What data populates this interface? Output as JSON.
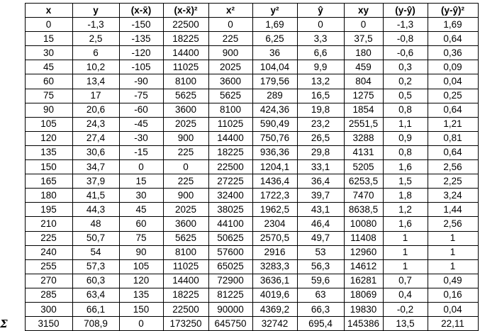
{
  "headers": [
    "x",
    "y",
    "(x-x̄)",
    "(x-x̄)²",
    "x²",
    "y²",
    "ŷ",
    "xy",
    "(y-ŷ)",
    "(y-ŷ)²"
  ],
  "rows": [
    [
      "0",
      "-1,3",
      "-150",
      "22500",
      "0",
      "1,69",
      "0",
      "0",
      "-1,3",
      "1,69"
    ],
    [
      "15",
      "2,5",
      "-135",
      "18225",
      "225",
      "6,25",
      "3,3",
      "37,5",
      "-0,8",
      "0,64"
    ],
    [
      "30",
      "6",
      "-120",
      "14400",
      "900",
      "36",
      "6,6",
      "180",
      "-0,6",
      "0,36"
    ],
    [
      "45",
      "10,2",
      "-105",
      "11025",
      "2025",
      "104,04",
      "9,9",
      "459",
      "0,3",
      "0,09"
    ],
    [
      "60",
      "13,4",
      "-90",
      "8100",
      "3600",
      "179,56",
      "13,2",
      "804",
      "0,2",
      "0,04"
    ],
    [
      "75",
      "17",
      "-75",
      "5625",
      "5625",
      "289",
      "16,5",
      "1275",
      "0,5",
      "0,25"
    ],
    [
      "90",
      "20,6",
      "-60",
      "3600",
      "8100",
      "424,36",
      "19,8",
      "1854",
      "0,8",
      "0,64"
    ],
    [
      "105",
      "24,3",
      "-45",
      "2025",
      "11025",
      "590,49",
      "23,2",
      "2551,5",
      "1,1",
      "1,21"
    ],
    [
      "120",
      "27,4",
      "-30",
      "900",
      "14400",
      "750,76",
      "26,5",
      "3288",
      "0,9",
      "0,81"
    ],
    [
      "135",
      "30,6",
      "-15",
      "225",
      "18225",
      "936,36",
      "29,8",
      "4131",
      "0,8",
      "0,64"
    ],
    [
      "150",
      "34,7",
      "0",
      "0",
      "22500",
      "1204,1",
      "33,1",
      "5205",
      "1,6",
      "2,56"
    ],
    [
      "165",
      "37,9",
      "15",
      "225",
      "27225",
      "1436,4",
      "36,4",
      "6253,5",
      "1,5",
      "2,25"
    ],
    [
      "180",
      "41,5",
      "30",
      "900",
      "32400",
      "1722,3",
      "39,7",
      "7470",
      "1,8",
      "3,24"
    ],
    [
      "195",
      "44,3",
      "45",
      "2025",
      "38025",
      "1962,5",
      "43,1",
      "8638,5",
      "1,2",
      "1,44"
    ],
    [
      "210",
      "48",
      "60",
      "3600",
      "44100",
      "2304",
      "46,4",
      "10080",
      "1,6",
      "2,56"
    ],
    [
      "225",
      "50,7",
      "75",
      "5625",
      "50625",
      "2570,5",
      "49,7",
      "11408",
      "1",
      "1"
    ],
    [
      "240",
      "54",
      "90",
      "8100",
      "57600",
      "2916",
      "53",
      "12960",
      "1",
      "1"
    ],
    [
      "255",
      "57,3",
      "105",
      "11025",
      "65025",
      "3283,3",
      "56,3",
      "14612",
      "1",
      "1"
    ],
    [
      "270",
      "60,3",
      "120",
      "14400",
      "72900",
      "3636,1",
      "59,6",
      "16281",
      "0,7",
      "0,49"
    ],
    [
      "285",
      "63,4",
      "135",
      "18225",
      "81225",
      "4019,6",
      "63",
      "18069",
      "0,4",
      "0,16"
    ],
    [
      "300",
      "66,1",
      "150",
      "22500",
      "90000",
      "4369,2",
      "66,3",
      "19830",
      "-0,2",
      "0,04"
    ]
  ],
  "sum_symbol": "Σ",
  "sum_row": [
    "3150",
    "708,9",
    "0",
    "173250",
    "645750",
    "32742",
    "695,4",
    "145386",
    "13,5",
    "22,11"
  ]
}
